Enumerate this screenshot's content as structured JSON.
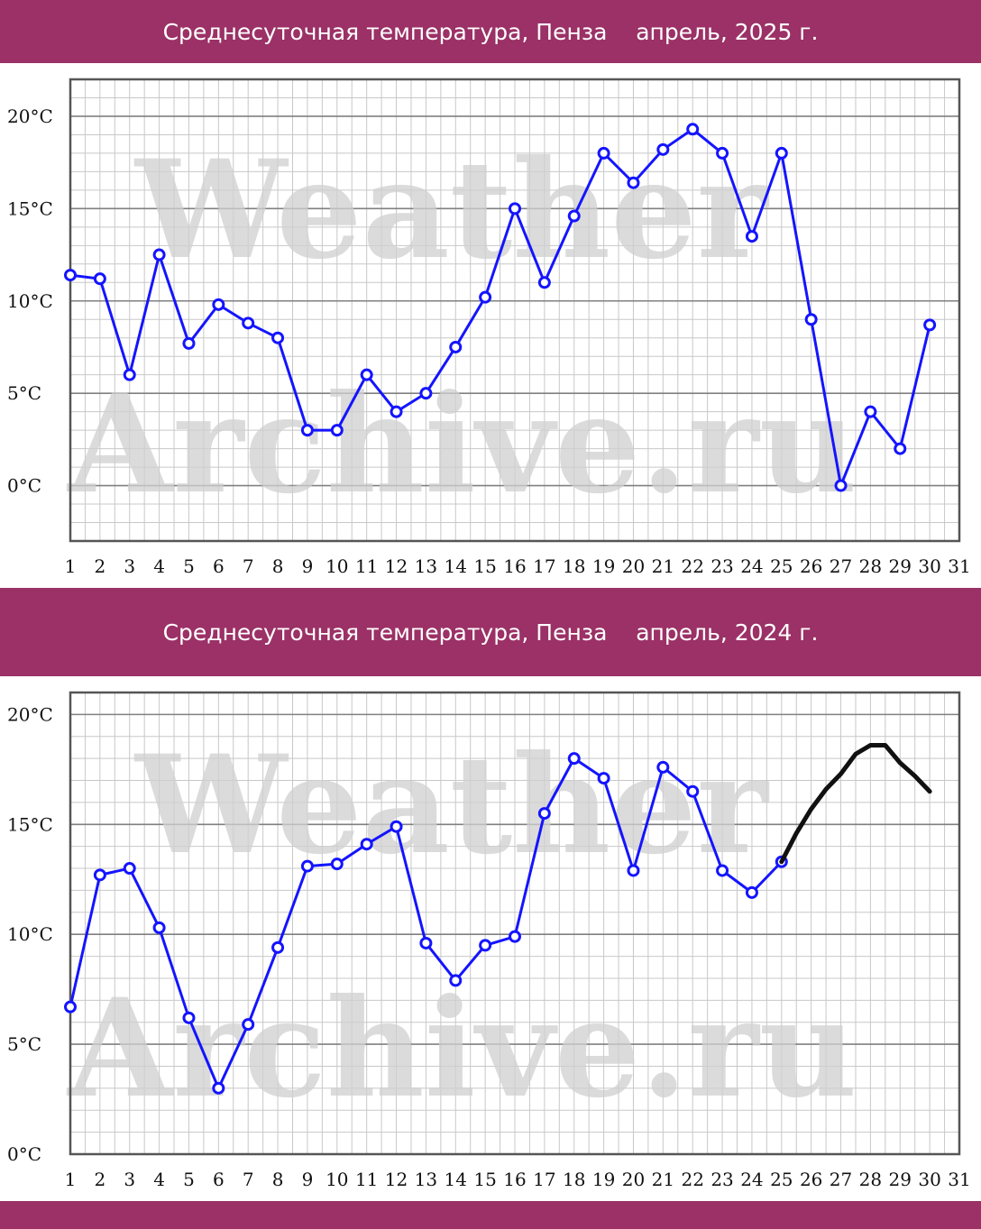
{
  "charts": [
    {
      "banner": "Среднесуточная температура, Пенза    апрель, 2025 г.",
      "watermark": [
        "Weather",
        "Archive.ru"
      ]
    },
    {
      "banner": "Среднесуточная температура, Пенза    апрель, 2024 г.",
      "watermark": [
        "Weather",
        "Archive.ru"
      ]
    }
  ],
  "colors": {
    "banner": "#9b3166",
    "series": "#1414ff",
    "forecast": "#111111"
  },
  "chart_data": [
    {
      "type": "line",
      "title": "Среднесуточная температура, Пенза    апрель, 2025 г.",
      "xlabel": "",
      "ylabel": "",
      "x_ticks": [
        1,
        2,
        3,
        4,
        5,
        6,
        7,
        8,
        9,
        10,
        11,
        12,
        13,
        14,
        15,
        16,
        17,
        18,
        19,
        20,
        21,
        22,
        23,
        24,
        25,
        26,
        27,
        28,
        29,
        30,
        31
      ],
      "y_ticks": [
        0,
        5,
        10,
        15,
        20
      ],
      "y_tick_labels": [
        "0°C",
        "5°C",
        "10°C",
        "15°C",
        "20°C"
      ],
      "xlim": [
        1,
        31
      ],
      "ylim": [
        -3,
        22
      ],
      "grid": true,
      "series": [
        {
          "x": [
            1,
            2,
            3,
            4,
            5,
            6,
            7,
            8,
            9,
            10,
            11,
            12,
            13,
            14,
            15,
            16,
            17,
            18,
            19,
            20,
            21,
            22,
            23,
            24,
            25,
            26,
            27,
            28,
            29,
            30
          ],
          "values": [
            11.4,
            11.2,
            6.0,
            12.5,
            7.7,
            9.8,
            8.8,
            8.0,
            3.0,
            3.0,
            6.0,
            4.0,
            5.0,
            7.5,
            10.2,
            15.0,
            11.0,
            14.6,
            18.0,
            16.4,
            18.2,
            19.3,
            18.0,
            13.5,
            18.0,
            9.0,
            0.0,
            4.0,
            2.0,
            8.7
          ],
          "markers": true
        }
      ]
    },
    {
      "type": "line",
      "title": "Среднесуточная температура, Пенза    апрель, 2024 г.",
      "xlabel": "",
      "ylabel": "",
      "x_ticks": [
        1,
        2,
        3,
        4,
        5,
        6,
        7,
        8,
        9,
        10,
        11,
        12,
        13,
        14,
        15,
        16,
        17,
        18,
        19,
        20,
        21,
        22,
        23,
        24,
        25,
        26,
        27,
        28,
        29,
        30,
        31
      ],
      "y_ticks": [
        0,
        5,
        10,
        15,
        20
      ],
      "y_tick_labels": [
        "0°C",
        "5°C",
        "10°C",
        "15°C",
        "20°C"
      ],
      "xlim": [
        1,
        31
      ],
      "ylim": [
        0,
        21
      ],
      "grid": true,
      "series": [
        {
          "x": [
            1,
            2,
            3,
            4,
            5,
            6,
            7,
            8,
            9,
            10,
            11,
            12,
            13,
            14,
            15,
            16,
            17,
            18,
            19,
            20,
            21,
            22,
            23,
            24,
            25
          ],
          "values": [
            6.7,
            12.7,
            13.0,
            10.3,
            6.2,
            3.0,
            5.9,
            9.4,
            13.1,
            13.2,
            14.1,
            14.9,
            9.6,
            7.9,
            9.5,
            9.9,
            15.5,
            18.0,
            17.1,
            12.9,
            17.6,
            16.5,
            12.9,
            11.9,
            13.3
          ],
          "markers": true
        },
        {
          "x": [
            25,
            25.5,
            26,
            26.5,
            27,
            27.5,
            28,
            28.5,
            29,
            29.5,
            30
          ],
          "values": [
            13.3,
            14.6,
            15.7,
            16.6,
            17.3,
            18.2,
            18.6,
            18.6,
            17.8,
            17.2,
            16.5
          ],
          "markers": false
        }
      ]
    }
  ]
}
